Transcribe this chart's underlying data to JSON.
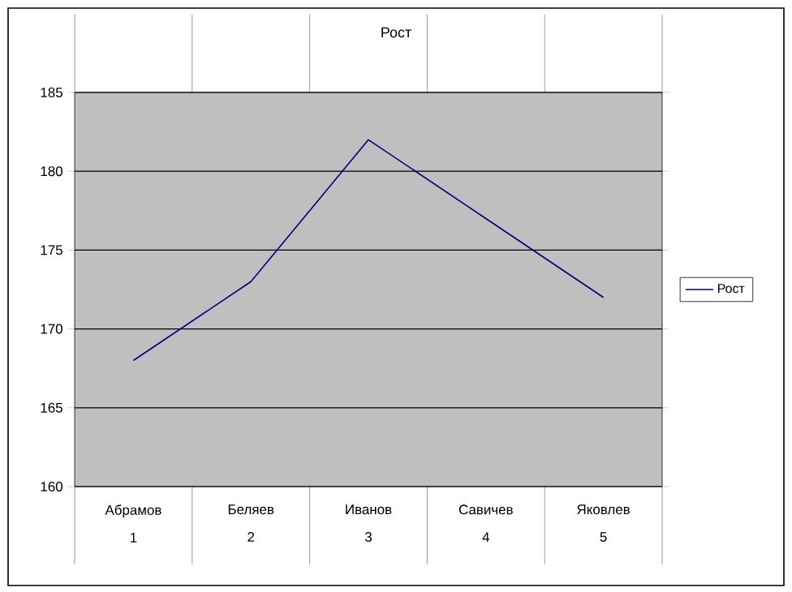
{
  "chart_data": {
    "type": "line",
    "title": "Рост",
    "categories": [
      "Абрамов",
      "Беляев",
      "Иванов",
      "Савичев",
      "Яковлев"
    ],
    "annotations": [
      "1",
      "2",
      "3",
      "4",
      "5"
    ],
    "series": [
      {
        "name": "Рост",
        "color": "#000080",
        "values": [
          168,
          173,
          182,
          177,
          172
        ]
      }
    ],
    "ylim": [
      160,
      185
    ],
    "yticks": [
      160,
      165,
      170,
      175,
      180,
      185
    ],
    "grid": "y",
    "legend": "right",
    "marker": "none",
    "line_style": "solid"
  }
}
